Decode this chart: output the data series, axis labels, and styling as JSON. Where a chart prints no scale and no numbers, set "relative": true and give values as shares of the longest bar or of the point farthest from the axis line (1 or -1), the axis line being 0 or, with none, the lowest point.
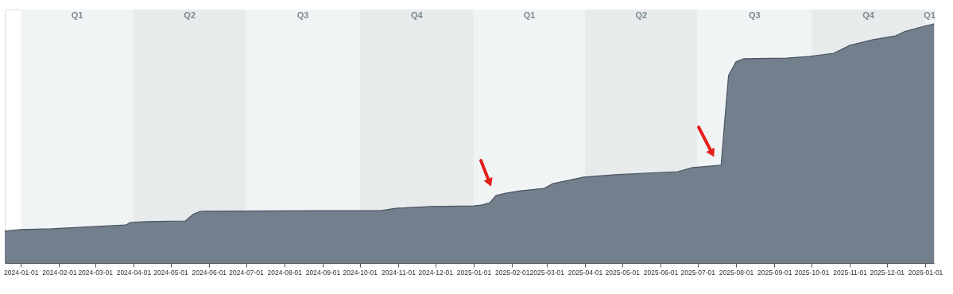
{
  "chart_data": {
    "type": "area",
    "relative": true,
    "x": [
      "2023-12-19",
      "2024-01-01",
      "2024-01-26",
      "2024-03-26",
      "2024-03-29",
      "2024-04-11",
      "2024-05-13",
      "2024-05-19",
      "2024-05-25",
      "2024-08-28",
      "2024-10-18",
      "2024-10-30",
      "2024-11-28",
      "2025-01-01",
      "2025-01-08",
      "2025-01-14",
      "2025-01-19",
      "2025-01-27",
      "2025-02-08",
      "2025-02-27",
      "2025-03-06",
      "2025-03-31",
      "2025-04-25",
      "2025-06-15",
      "2025-06-27",
      "2025-07-20",
      "2025-07-23",
      "2025-07-26",
      "2025-08-01",
      "2025-08-07",
      "2025-09-11",
      "2025-09-30",
      "2025-10-19",
      "2025-11-01",
      "2025-11-20",
      "2025-12-08",
      "2025-12-15",
      "2025-12-31",
      "2026-01-08"
    ],
    "series": [
      {
        "color": "#737f8d",
        "values": [
          0.133,
          0.14,
          0.143,
          0.159,
          0.169,
          0.173,
          0.176,
          0.203,
          0.216,
          0.219,
          0.219,
          0.229,
          0.236,
          0.239,
          0.243,
          0.252,
          0.282,
          0.292,
          0.302,
          0.312,
          0.332,
          0.359,
          0.369,
          0.382,
          0.399,
          0.409,
          0.601,
          0.784,
          0.841,
          0.854,
          0.857,
          0.864,
          0.877,
          0.91,
          0.934,
          0.95,
          0.967,
          0.99,
          1.0
        ]
      }
    ],
    "xlim": [
      "2023-12-19",
      "2026-01-08"
    ],
    "xticks": [
      "2024-01-01",
      "2024-02-01",
      "2024-03-01",
      "2024-04-01",
      "2024-05-01",
      "2024-06-01",
      "2024-07-01",
      "2024-08-01",
      "2024-09-01",
      "2024-10-01",
      "2024-11-01",
      "2024-12-01",
      "2025-01-01",
      "2025-02-01",
      "2025-03-01",
      "2025-04-01",
      "2025-05-01",
      "2025-06-01",
      "2025-07-01",
      "2025-08-01",
      "2025-09-01",
      "2025-10-01",
      "2025-11-01",
      "2025-12-01",
      "2026-01-01"
    ],
    "bands": [
      {
        "axis": "x",
        "from": "2024-01-01",
        "to": "2024-04-01",
        "label": "Q1",
        "color": "#f1f4f5"
      },
      {
        "axis": "x",
        "from": "2024-04-01",
        "to": "2024-07-01",
        "label": "Q2",
        "color": "#e7ebec"
      },
      {
        "axis": "x",
        "from": "2024-07-01",
        "to": "2024-10-01",
        "label": "Q3",
        "color": "#f1f4f5"
      },
      {
        "axis": "x",
        "from": "2024-10-01",
        "to": "2025-01-01",
        "label": "Q4",
        "color": "#e7ebec"
      },
      {
        "axis": "x",
        "from": "2025-01-01",
        "to": "2025-04-01",
        "label": "Q1",
        "color": "#f1f4f5"
      },
      {
        "axis": "x",
        "from": "2025-04-01",
        "to": "2025-07-01",
        "label": "Q2",
        "color": "#e7ebec"
      },
      {
        "axis": "x",
        "from": "2025-07-01",
        "to": "2025-10-01",
        "label": "Q3",
        "color": "#f1f4f5"
      },
      {
        "axis": "x",
        "from": "2025-10-01",
        "to": "2026-01-01",
        "label": "Q4",
        "color": "#e7ebec"
      },
      {
        "axis": "x",
        "from": "2026-01-01",
        "to": "2026-01-08",
        "label": "Q1",
        "color": "#f1f4f5"
      }
    ]
  }
}
